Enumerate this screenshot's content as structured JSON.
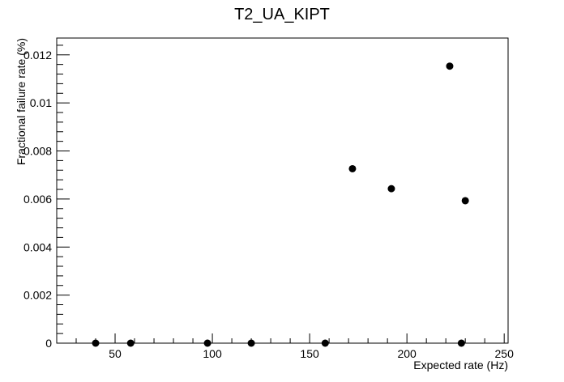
{
  "chart_data": {
    "type": "scatter",
    "title": "T2_UA_KIPT",
    "xlabel": "Expected rate (Hz)",
    "ylabel": "Fractional failure rate (%)",
    "xlim": [
      20,
      252
    ],
    "ylim": [
      0,
      0.0127
    ],
    "x_ticks": [
      50,
      100,
      150,
      200,
      250
    ],
    "x_tick_labels": [
      "50",
      "100",
      "150",
      "200",
      "250"
    ],
    "y_ticks": [
      0,
      0.002,
      0.004,
      0.006,
      0.008,
      0.01,
      0.012
    ],
    "y_tick_labels": [
      "0",
      "0.002",
      "0.004",
      "0.006",
      "0.008",
      "0.01",
      "0.012"
    ],
    "grid": false,
    "marker_color": "#000000",
    "points": [
      {
        "x": 40,
        "y": 0
      },
      {
        "x": 58,
        "y": 0
      },
      {
        "x": 97.5,
        "y": 0
      },
      {
        "x": 120,
        "y": 0
      },
      {
        "x": 158,
        "y": 0
      },
      {
        "x": 172,
        "y": 0.00726
      },
      {
        "x": 192,
        "y": 0.00643
      },
      {
        "x": 222,
        "y": 0.01153
      },
      {
        "x": 228,
        "y": 0
      },
      {
        "x": 230,
        "y": 0.00593
      }
    ]
  }
}
